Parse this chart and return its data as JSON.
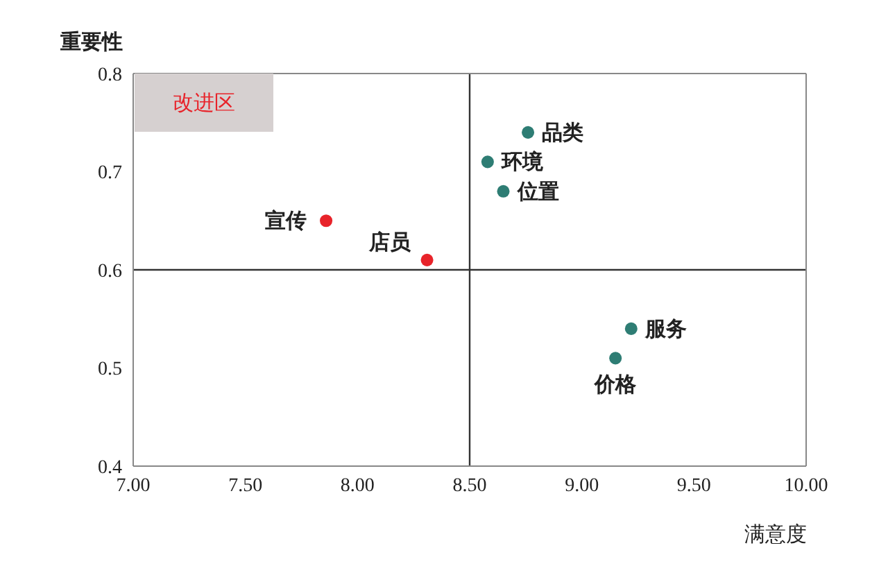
{
  "chart_data": {
    "type": "scatter",
    "xlabel": "满意度",
    "ylabel": "重要性",
    "xlim": [
      7,
      10
    ],
    "ylim": [
      0.4,
      0.8
    ],
    "xticks": [
      {
        "value": 7,
        "label": "7.00"
      },
      {
        "value": 7.5,
        "label": "7.50"
      },
      {
        "value": 8,
        "label": "8.00"
      },
      {
        "value": 8.5,
        "label": "8.50"
      },
      {
        "value": 9,
        "label": "9.00"
      },
      {
        "value": 9.5,
        "label": "9.50"
      },
      {
        "value": 10,
        "label": "10.00"
      }
    ],
    "yticks": [
      0.4,
      0.5,
      0.6,
      0.7,
      0.8
    ],
    "legend": false,
    "marker": "circle",
    "series": [
      {
        "color": "#e8232a",
        "x": [
          7.86,
          8.31
        ],
        "values": [
          0.65,
          0.61
        ]
      },
      {
        "color": "#2e7d74",
        "x": [
          8.76,
          8.58,
          8.65,
          9.22,
          9.15
        ],
        "values": [
          0.74,
          0.71,
          0.68,
          0.54,
          0.51
        ]
      }
    ],
    "ref_lines": [
      {
        "axis": "x",
        "value": 8.5,
        "color": "#333333"
      },
      {
        "axis": "y",
        "value": 0.6,
        "color": "#333333"
      }
    ],
    "annotations": [
      "改进区",
      {
        "text": "宣传",
        "x": 7.86,
        "y": 0.65
      },
      {
        "text": "店员",
        "x": 8.31,
        "y": 0.61
      },
      {
        "text": "品类",
        "x": 8.76,
        "y": 0.74
      },
      {
        "text": "环境",
        "x": 8.58,
        "y": 0.71
      },
      {
        "text": "位置",
        "x": 8.65,
        "y": 0.68
      },
      {
        "text": "服务",
        "x": 9.22,
        "y": 0.54
      },
      {
        "text": "价格",
        "x": 9.15,
        "y": 0.51
      }
    ]
  }
}
